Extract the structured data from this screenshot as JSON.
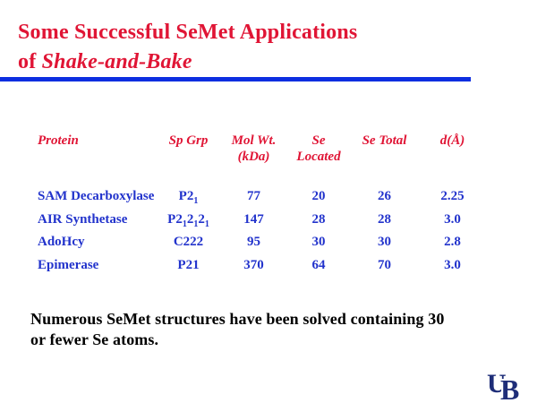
{
  "title": {
    "line1": "Some Successful SeMet Applications",
    "line2_prefix": "of ",
    "line2_italic": "Shake-and-Bake"
  },
  "table": {
    "headers": [
      {
        "line1": "Protein",
        "line2": ""
      },
      {
        "line1": "Sp Grp",
        "line2": ""
      },
      {
        "line1": "Mol Wt.",
        "line2": "(kDa)"
      },
      {
        "line1": "Se",
        "line2": "Located"
      },
      {
        "line1": "Se Total",
        "line2": ""
      },
      {
        "line1": "d(Å)",
        "line2": ""
      }
    ],
    "rows": [
      {
        "protein": "SAM Decarboxylase",
        "sp_grp": "P2{1}",
        "mol_wt": "77",
        "se_located": "20",
        "se_total": "26",
        "d": "2.25"
      },
      {
        "protein": "AIR Synthetase",
        "sp_grp": "P2{1}2{1}2{1}",
        "mol_wt": "147",
        "se_located": "28",
        "se_total": "28",
        "d": "3.0"
      },
      {
        "protein": "AdoHcy",
        "sp_grp": "C222",
        "mol_wt": "95",
        "se_located": "30",
        "se_total": "30",
        "d": "2.8"
      },
      {
        "protein": "Epimerase",
        "sp_grp": "P21",
        "mol_wt": "370",
        "se_located": "64",
        "se_total": "70",
        "d": "3.0"
      }
    ]
  },
  "footer": {
    "line1": "Numerous SeMet structures have been solved containing 30",
    "line2": "or fewer Se atoms."
  },
  "logo": {
    "u": "U",
    "b": "B"
  },
  "colors": {
    "title_red": "#e01535",
    "rule_blue": "#0d2ee0",
    "body_blue": "#2233cc",
    "logo_navy": "#1e2d78"
  }
}
